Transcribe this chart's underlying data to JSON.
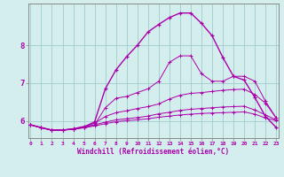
{
  "xlabel": "Windchill (Refroidissement éolien,°C)",
  "bg_color": "#d4eeee",
  "line_color": "#aa00aa",
  "grid_color": "#a0cccc",
  "spine_color": "#888888",
  "x_values": [
    0,
    1,
    2,
    3,
    4,
    5,
    6,
    7,
    8,
    9,
    10,
    11,
    12,
    13,
    14,
    15,
    16,
    17,
    18,
    19,
    20,
    21,
    22,
    23
  ],
  "curves": [
    [
      5.9,
      5.82,
      5.76,
      5.76,
      5.79,
      5.83,
      5.9,
      6.35,
      6.6,
      6.65,
      6.75,
      6.85,
      7.05,
      7.55,
      7.72,
      7.72,
      7.25,
      7.05,
      7.05,
      7.18,
      7.18,
      7.05,
      6.52,
      6.08
    ],
    [
      5.9,
      5.82,
      5.76,
      5.76,
      5.8,
      5.86,
      5.94,
      6.12,
      6.22,
      6.27,
      6.33,
      6.38,
      6.45,
      6.58,
      6.68,
      6.73,
      6.75,
      6.78,
      6.81,
      6.83,
      6.84,
      6.7,
      6.47,
      6.08
    ],
    [
      5.9,
      5.82,
      5.76,
      5.76,
      5.79,
      5.84,
      5.9,
      5.97,
      6.03,
      6.06,
      6.09,
      6.13,
      6.19,
      6.23,
      6.28,
      6.31,
      6.33,
      6.35,
      6.37,
      6.38,
      6.39,
      6.29,
      6.16,
      6.03
    ],
    [
      5.9,
      5.82,
      5.76,
      5.76,
      5.78,
      5.82,
      5.87,
      5.93,
      5.98,
      6.01,
      6.03,
      6.06,
      6.1,
      6.13,
      6.16,
      6.18,
      6.2,
      6.21,
      6.22,
      6.23,
      6.24,
      6.18,
      6.08,
      6.01
    ]
  ],
  "main_curve": [
    5.9,
    5.83,
    5.76,
    5.76,
    5.79,
    5.84,
    5.98,
    6.85,
    7.35,
    7.7,
    8.0,
    8.35,
    8.55,
    8.73,
    8.85,
    8.85,
    8.58,
    8.25,
    7.68,
    7.18,
    7.08,
    6.62,
    6.12,
    5.83
  ],
  "ylim": [
    5.55,
    9.1
  ],
  "xlim": [
    -0.2,
    23.2
  ],
  "yticks": [
    6,
    7,
    8
  ],
  "xticks": [
    0,
    1,
    2,
    3,
    4,
    5,
    6,
    7,
    8,
    9,
    10,
    11,
    12,
    13,
    14,
    15,
    16,
    17,
    18,
    19,
    20,
    21,
    22,
    23
  ]
}
